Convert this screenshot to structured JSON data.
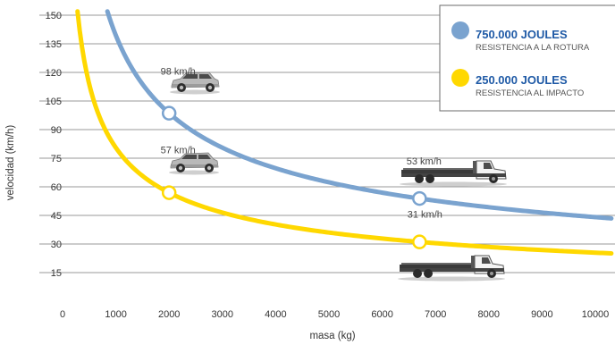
{
  "chart_data": {
    "type": "line",
    "xlabel": "masa (kg)",
    "ylabel": "velocidad (km/h)",
    "xlim": [
      0,
      10000
    ],
    "ylim": [
      0,
      150
    ],
    "x_ticks": [
      "0",
      "1000",
      "2000",
      "3000",
      "4000",
      "5000",
      "6000",
      "7000",
      "8000",
      "9000",
      "10000"
    ],
    "y_ticks": [
      "15",
      "30",
      "45",
      "60",
      "75",
      "90",
      "105",
      "120",
      "135",
      "150"
    ],
    "grid": "horizontal",
    "legend_position": "top-right",
    "series": [
      {
        "name": "750.000 JOULES",
        "subtitle": "RESISTENCIA A LA ROTURA",
        "color": "#7aa3cf",
        "energy_joules": 750000,
        "highlighted_points": [
          {
            "x": 2000,
            "y": 98,
            "label": "98 km/h",
            "vehicle": "suv"
          },
          {
            "x": 6700,
            "y": 53,
            "label": "53 km/h",
            "vehicle": "truck"
          }
        ]
      },
      {
        "name": "250.000 JOULES",
        "subtitle": "RESISTENCIA AL IMPACTO",
        "color": "#ffd800",
        "energy_joules": 250000,
        "highlighted_points": [
          {
            "x": 2000,
            "y": 57,
            "label": "57 km/h",
            "vehicle": "suv"
          },
          {
            "x": 6700,
            "y": 31,
            "label": "31 km/h",
            "vehicle": "truck"
          }
        ]
      }
    ]
  }
}
